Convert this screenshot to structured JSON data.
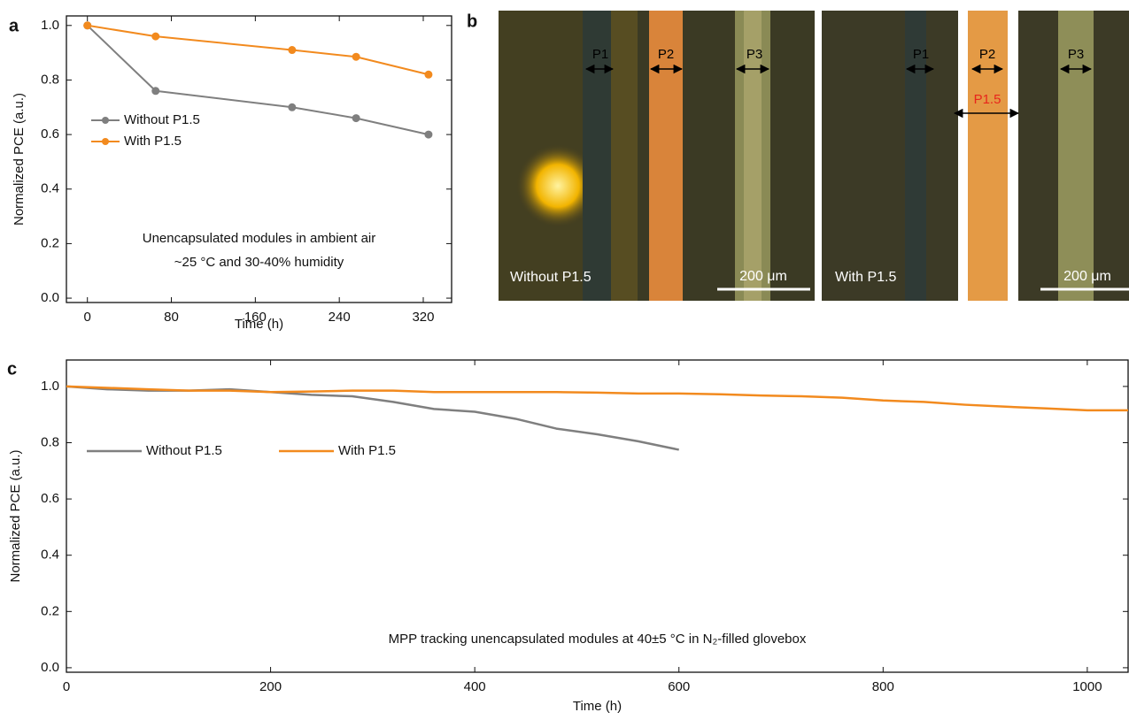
{
  "panel_labels": [
    "a",
    "b",
    "c"
  ],
  "chart_data": [
    {
      "type": "line",
      "xlabel": "Time (h)",
      "ylabel": "Normalized PCE (a.u.)",
      "annotations": [
        "Unencapsulated modules in ambient air",
        "~25 °C and 30-40% humidity"
      ],
      "x": [
        0,
        65,
        195,
        256,
        325
      ],
      "xlim": [
        -20,
        347
      ],
      "xticks": [
        0,
        80,
        160,
        240,
        320
      ],
      "ylim": [
        -0.016,
        1.035
      ],
      "yticks": [
        {
          "value": 0,
          "label": "0.0"
        },
        0.2,
        0.4,
        0.6,
        0.8,
        {
          "value": 1,
          "label": "1.0"
        }
      ],
      "markers": true,
      "legend": "center-left",
      "series": [
        {
          "name": "Without P1.5",
          "color": "#7f7f7f",
          "values": [
            1.0,
            0.76,
            0.7,
            0.66,
            0.6
          ]
        },
        {
          "name": "With P1.5",
          "color": "#f28a1e",
          "values": [
            1.0,
            0.96,
            0.91,
            0.885,
            0.82
          ]
        }
      ]
    },
    {
      "type": "line",
      "xlabel": "Time (h)",
      "ylabel": "Normalized PCE (a.u.)",
      "annotations": [
        "MPP tracking unencapsulated modules at 40±5 °C in N₂-filled glovebox"
      ],
      "x": [
        0,
        40,
        80,
        120,
        160,
        200,
        240,
        280,
        320,
        360,
        400,
        440,
        480,
        520,
        560,
        600,
        640,
        680,
        720,
        760,
        800,
        840,
        880,
        920,
        960,
        1000,
        1040
      ],
      "xlim": [
        0,
        1040
      ],
      "xticks": [
        0,
        200,
        400,
        600,
        800,
        1000
      ],
      "ylim": [
        -0.016,
        1.094
      ],
      "yticks": [
        {
          "value": 0,
          "label": "0.0"
        },
        0.2,
        0.4,
        0.6,
        0.8,
        {
          "value": 1,
          "label": "1.0"
        }
      ],
      "markers": false,
      "legend": "upper-left",
      "series": [
        {
          "name": "Without P1.5",
          "color": "#7f7f7f",
          "values": [
            1.0,
            0.99,
            0.985,
            0.985,
            0.99,
            0.98,
            0.97,
            0.965,
            0.945,
            0.92,
            0.91,
            0.885,
            0.85,
            0.83,
            0.805,
            0.775,
            null,
            null,
            null,
            null,
            null,
            null,
            null,
            null,
            null,
            null,
            null
          ]
        },
        {
          "name": "With P1.5",
          "color": "#f28a1e",
          "values": [
            1.0,
            0.995,
            0.99,
            0.985,
            0.985,
            0.98,
            0.982,
            0.985,
            0.985,
            0.98,
            0.98,
            0.98,
            0.98,
            0.978,
            0.975,
            0.975,
            0.972,
            0.968,
            0.965,
            0.96,
            0.95,
            0.945,
            0.935,
            0.928,
            0.922,
            0.915,
            0.915
          ]
        }
      ]
    }
  ],
  "micrograph": {
    "tiles": [
      {
        "caption": "Without P1.5",
        "scale_bar": "200 μm",
        "scribes": [
          "P1",
          "P2",
          "P3"
        ]
      },
      {
        "caption": "With P1.5",
        "scale_bar": "200 μm",
        "scribes": [
          "P1",
          "P2",
          "P1.5",
          "P3"
        ]
      }
    ]
  }
}
